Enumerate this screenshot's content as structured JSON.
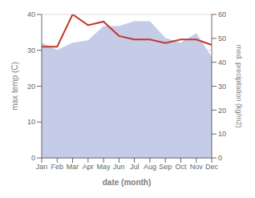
{
  "chart_data": {
    "type": "line",
    "categories": [
      "Jan",
      "Feb",
      "Mar",
      "Apr",
      "May",
      "Jun",
      "Jul",
      "Aug",
      "Sep",
      "Oct",
      "Nov",
      "Dec"
    ],
    "xlabel": "date (month)",
    "ylabel": "max temp (C)",
    "y2label": "med. precipitation (kg/m2)",
    "series": [
      {
        "type": "area",
        "axis": "y2",
        "color": "#c5cce8",
        "values": [
          48,
          45,
          48,
          49,
          55,
          55,
          57,
          57,
          50,
          48,
          52,
          42
        ]
      },
      {
        "type": "line",
        "color": "#c0392b",
        "values": [
          31,
          31,
          40,
          37,
          38,
          34,
          33,
          33,
          32,
          33,
          33,
          31.5
        ]
      }
    ],
    "ylim": [
      0,
      40
    ],
    "yticks": [
      0,
      10,
      20,
      30,
      40
    ],
    "y2lim": [
      0,
      60
    ],
    "y2ticks": [
      0,
      10,
      20,
      30,
      40,
      50,
      60
    ],
    "grid": true
  }
}
